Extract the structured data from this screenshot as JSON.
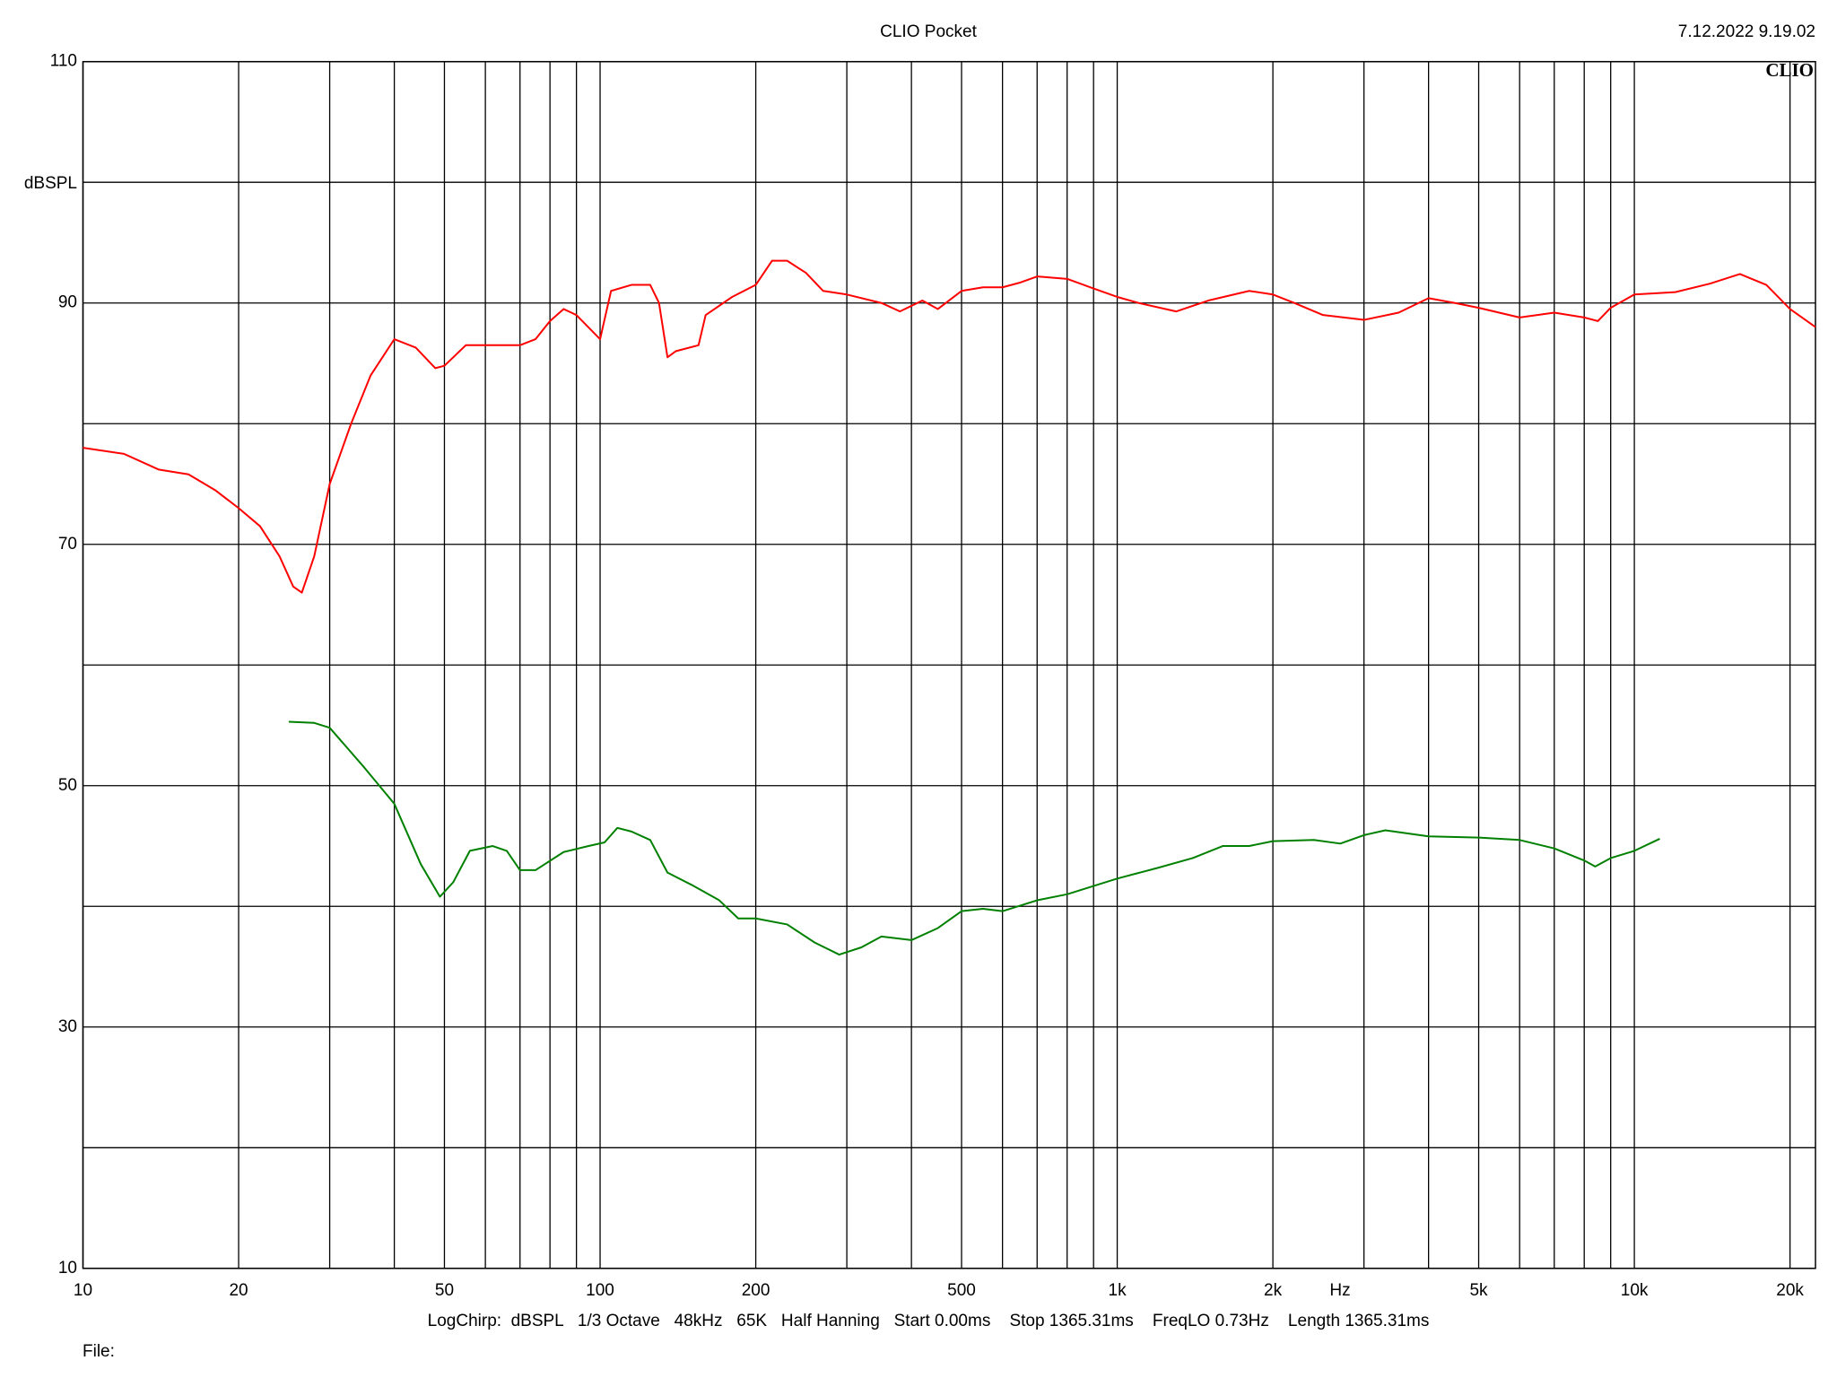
{
  "chart_data": {
    "type": "line",
    "title": "CLIO Pocket",
    "timestamp": "7.12.2022 9.19.02",
    "logo": "CLIO",
    "ylabel": "dBSPL",
    "xlabel": "Hz",
    "footer": "LogChirp:  dBSPL   1/3 Octave   48kHz   65K   Half Hanning   Start 0.00ms    Stop 1365.31ms    FreqLO 0.73Hz    Length 1365.31ms",
    "file_label": "File:",
    "xscale": "log",
    "grid": true,
    "xlim": [
      10,
      22400
    ],
    "ylim": [
      10,
      110
    ],
    "xticks": [
      10,
      20,
      50,
      100,
      200,
      500,
      {
        "value": 1000,
        "label": "1k"
      },
      {
        "value": 2000,
        "label": "2k"
      },
      {
        "value": 5000,
        "label": "5k"
      },
      {
        "value": 10000,
        "label": "10k"
      },
      {
        "value": 20000,
        "label": "20k"
      }
    ],
    "minor_xticks": [
      30,
      40,
      60,
      70,
      80,
      90,
      300,
      400,
      600,
      700,
      800,
      900,
      3000,
      4000,
      6000,
      7000,
      8000,
      9000
    ],
    "yticks": [
      10,
      30,
      50,
      70,
      90,
      110
    ],
    "minor_yticks": [
      20,
      40,
      60,
      80,
      100
    ],
    "series": [
      {
        "color": "#ff0000",
        "x": [
          10,
          12,
          14,
          16,
          18,
          20,
          22,
          24,
          25.5,
          26.5,
          28,
          30,
          33,
          36,
          40,
          44,
          48,
          50,
          55,
          65,
          70,
          75,
          80,
          85,
          90,
          100,
          105,
          115,
          125,
          130,
          135,
          140,
          155,
          160,
          180,
          200,
          215,
          230,
          250,
          270,
          300,
          350,
          380,
          420,
          450,
          500,
          550,
          600,
          650,
          700,
          800,
          900,
          1000,
          1100,
          1300,
          1500,
          1800,
          2000,
          2200,
          2500,
          3000,
          3500,
          4000,
          4500,
          5000,
          6000,
          7000,
          8000,
          8500,
          9000,
          10000,
          12000,
          14000,
          16000,
          18000,
          20000,
          22400
        ],
        "values": [
          78,
          77.5,
          76.2,
          75.8,
          74.5,
          73,
          71.5,
          69,
          66.5,
          66,
          69,
          75,
          80,
          84,
          87,
          86.3,
          84.6,
          84.8,
          86.5,
          86.5,
          86.5,
          87,
          88.5,
          89.5,
          89,
          87,
          91,
          91.5,
          91.5,
          90,
          85.5,
          86,
          86.5,
          89,
          90.5,
          91.5,
          93.5,
          93.5,
          92.5,
          91,
          90.7,
          90,
          89.3,
          90.2,
          89.5,
          91,
          91.3,
          91.3,
          91.7,
          92.2,
          92,
          91.2,
          90.5,
          90,
          89.3,
          90.2,
          91,
          90.7,
          90,
          89,
          88.6,
          89.2,
          90.4,
          90,
          89.6,
          88.8,
          89.2,
          88.8,
          88.5,
          89.6,
          90.7,
          90.9,
          91.6,
          92.4,
          91.5,
          89.5,
          88
        ]
      },
      {
        "color": "#008000",
        "x": [
          25,
          28,
          30,
          35,
          40,
          45,
          49,
          52,
          56,
          62,
          66,
          70,
          75,
          85,
          95,
          102,
          108,
          115,
          125,
          135,
          150,
          170,
          185,
          200,
          230,
          260,
          290,
          320,
          350,
          400,
          450,
          500,
          550,
          600,
          700,
          800,
          1000,
          1200,
          1400,
          1600,
          1800,
          2000,
          2400,
          2700,
          3000,
          3300,
          4000,
          5000,
          6000,
          7000,
          8000,
          8400,
          9000,
          10000,
          11200
        ],
        "values": [
          55.3,
          55.2,
          54.8,
          51.5,
          48.5,
          43.5,
          40.8,
          42,
          44.6,
          45,
          44.6,
          43,
          43,
          44.5,
          45,
          45.3,
          46.5,
          46.2,
          45.5,
          42.8,
          41.8,
          40.5,
          39,
          39,
          38.5,
          37,
          36,
          36.6,
          37.5,
          37.2,
          38.2,
          39.6,
          39.8,
          39.6,
          40.5,
          41,
          42.3,
          43.2,
          44,
          45,
          45,
          45.4,
          45.5,
          45.2,
          45.9,
          46.3,
          45.8,
          45.7,
          45.5,
          44.8,
          43.8,
          43.3,
          44,
          44.6,
          45.6
        ]
      }
    ]
  }
}
